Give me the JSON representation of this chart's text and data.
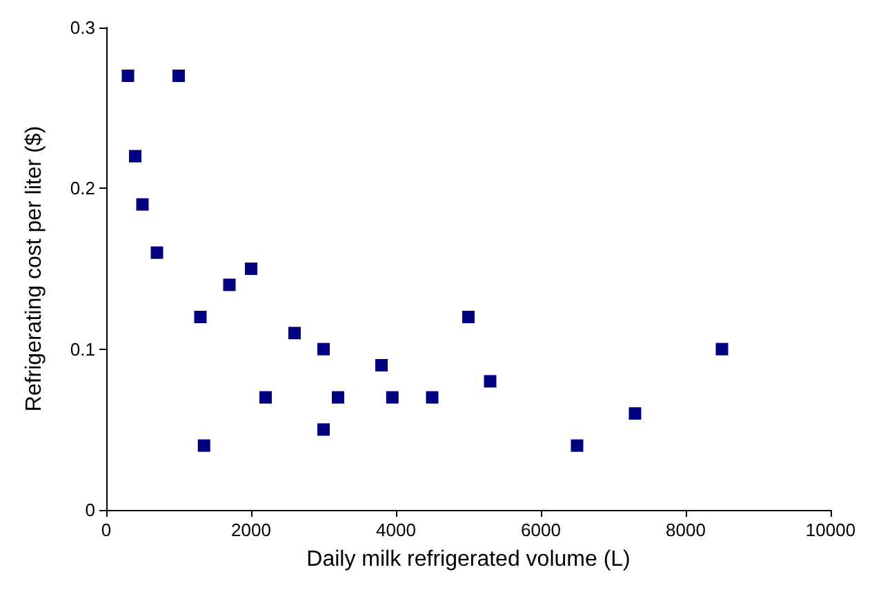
{
  "chart_data": {
    "type": "scatter",
    "xlabel": "Daily milk refrigerated volume (L)",
    "ylabel": "Refrigerating cost per liter ($)",
    "x": [
      300,
      400,
      500,
      700,
      1000,
      1300,
      1350,
      1700,
      2000,
      2200,
      2600,
      3000,
      3000,
      3200,
      3800,
      3950,
      4500,
      5000,
      5300,
      6500,
      7300,
      8500
    ],
    "values": [
      0.27,
      0.22,
      0.19,
      0.16,
      0.27,
      0.12,
      0.04,
      0.14,
      0.15,
      0.07,
      0.11,
      0.1,
      0.05,
      0.07,
      0.09,
      0.07,
      0.07,
      0.12,
      0.08,
      0.04,
      0.06,
      0.1
    ],
    "color": "#000080",
    "marker": "square",
    "grid": false,
    "xlim": [
      0,
      10000
    ],
    "xticks": [
      0,
      2000,
      4000,
      6000,
      8000,
      10000
    ],
    "ylim": [
      0,
      0.3
    ],
    "yticks": [
      0,
      0.1,
      0.2,
      0.3
    ]
  }
}
